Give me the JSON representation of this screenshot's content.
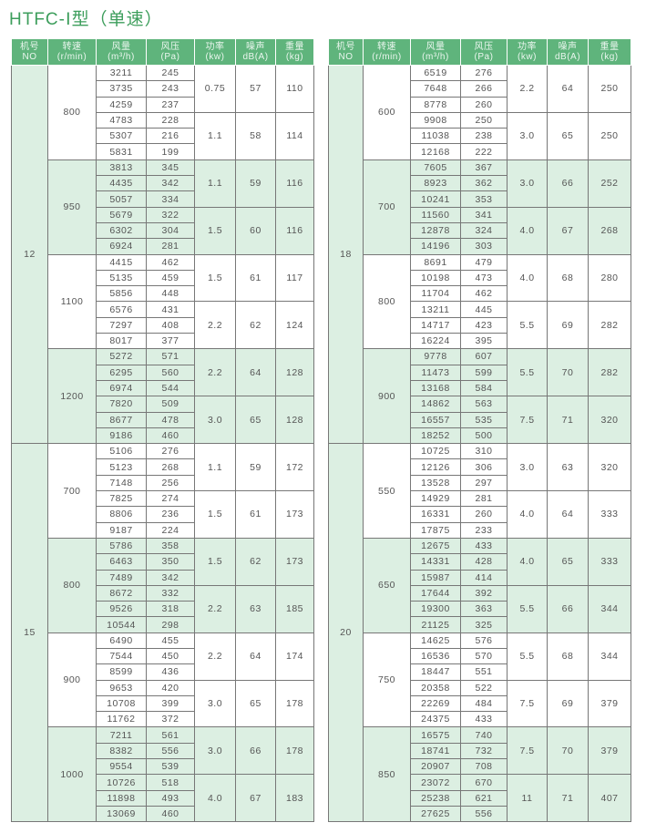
{
  "title": "HTFC-Ⅰ型（单速）",
  "colors": {
    "header": "#5fb47c",
    "shade": "#dcefe2",
    "title": "#3d9e5c"
  },
  "headers": [
    [
      "机号",
      "NO"
    ],
    [
      "转速",
      "(r/min)"
    ],
    [
      "风量",
      "(m³/h)"
    ],
    [
      "风压",
      "(Pa)"
    ],
    [
      "功率",
      "(kw)"
    ],
    [
      "噪声",
      "dB(A)"
    ],
    [
      "重量",
      "(kg)"
    ]
  ],
  "tables": [
    {
      "groups": [
        {
          "no": "12",
          "speeds": [
            {
              "speed": "800",
              "subs": [
                {
                  "power": "0.75",
                  "noise": "57",
                  "weight": "110",
                  "rows": [
                    [
                      "3211",
                      "245"
                    ],
                    [
                      "3735",
                      "243"
                    ],
                    [
                      "4259",
                      "237"
                    ]
                  ]
                },
                {
                  "power": "1.1",
                  "noise": "58",
                  "weight": "114",
                  "rows": [
                    [
                      "4783",
                      "228"
                    ],
                    [
                      "5307",
                      "216"
                    ],
                    [
                      "5831",
                      "199"
                    ]
                  ]
                }
              ]
            },
            {
              "speed": "950",
              "subs": [
                {
                  "power": "1.1",
                  "noise": "59",
                  "weight": "116",
                  "rows": [
                    [
                      "3813",
                      "345"
                    ],
                    [
                      "4435",
                      "342"
                    ],
                    [
                      "5057",
                      "334"
                    ]
                  ]
                },
                {
                  "power": "1.5",
                  "noise": "60",
                  "weight": "116",
                  "rows": [
                    [
                      "5679",
                      "322"
                    ],
                    [
                      "6302",
                      "304"
                    ],
                    [
                      "6924",
                      "281"
                    ]
                  ]
                }
              ]
            },
            {
              "speed": "1100",
              "subs": [
                {
                  "power": "1.5",
                  "noise": "61",
                  "weight": "117",
                  "rows": [
                    [
                      "4415",
                      "462"
                    ],
                    [
                      "5135",
                      "459"
                    ],
                    [
                      "5856",
                      "448"
                    ]
                  ]
                },
                {
                  "power": "2.2",
                  "noise": "62",
                  "weight": "124",
                  "rows": [
                    [
                      "6576",
                      "431"
                    ],
                    [
                      "7297",
                      "408"
                    ],
                    [
                      "8017",
                      "377"
                    ]
                  ]
                }
              ]
            },
            {
              "speed": "1200",
              "subs": [
                {
                  "power": "2.2",
                  "noise": "64",
                  "weight": "128",
                  "rows": [
                    [
                      "5272",
                      "571"
                    ],
                    [
                      "6295",
                      "560"
                    ],
                    [
                      "6974",
                      "544"
                    ]
                  ]
                },
                {
                  "power": "3.0",
                  "noise": "65",
                  "weight": "128",
                  "rows": [
                    [
                      "7820",
                      "509"
                    ],
                    [
                      "8677",
                      "478"
                    ],
                    [
                      "9186",
                      "460"
                    ]
                  ]
                }
              ]
            }
          ]
        },
        {
          "no": "15",
          "speeds": [
            {
              "speed": "700",
              "subs": [
                {
                  "power": "1.1",
                  "noise": "59",
                  "weight": "172",
                  "rows": [
                    [
                      "5106",
                      "276"
                    ],
                    [
                      "5123",
                      "268"
                    ],
                    [
                      "7148",
                      "256"
                    ]
                  ]
                },
                {
                  "power": "1.5",
                  "noise": "61",
                  "weight": "173",
                  "rows": [
                    [
                      "7825",
                      "274"
                    ],
                    [
                      "8806",
                      "236"
                    ],
                    [
                      "9187",
                      "224"
                    ]
                  ]
                }
              ]
            },
            {
              "speed": "800",
              "subs": [
                {
                  "power": "1.5",
                  "noise": "62",
                  "weight": "173",
                  "rows": [
                    [
                      "5786",
                      "358"
                    ],
                    [
                      "6463",
                      "350"
                    ],
                    [
                      "7489",
                      "342"
                    ]
                  ]
                },
                {
                  "power": "2.2",
                  "noise": "63",
                  "weight": "185",
                  "rows": [
                    [
                      "8672",
                      "332"
                    ],
                    [
                      "9526",
                      "318"
                    ],
                    [
                      "10544",
                      "298"
                    ]
                  ]
                }
              ]
            },
            {
              "speed": "900",
              "subs": [
                {
                  "power": "2.2",
                  "noise": "64",
                  "weight": "174",
                  "rows": [
                    [
                      "6490",
                      "455"
                    ],
                    [
                      "7544",
                      "450"
                    ],
                    [
                      "8599",
                      "436"
                    ]
                  ]
                },
                {
                  "power": "3.0",
                  "noise": "65",
                  "weight": "178",
                  "rows": [
                    [
                      "9653",
                      "420"
                    ],
                    [
                      "10708",
                      "399"
                    ],
                    [
                      "11762",
                      "372"
                    ]
                  ]
                }
              ]
            },
            {
              "speed": "1000",
              "subs": [
                {
                  "power": "3.0",
                  "noise": "66",
                  "weight": "178",
                  "rows": [
                    [
                      "7211",
                      "561"
                    ],
                    [
                      "8382",
                      "556"
                    ],
                    [
                      "9554",
                      "539"
                    ]
                  ]
                },
                {
                  "power": "4.0",
                  "noise": "67",
                  "weight": "183",
                  "rows": [
                    [
                      "10726",
                      "518"
                    ],
                    [
                      "11898",
                      "493"
                    ],
                    [
                      "13069",
                      "460"
                    ]
                  ]
                }
              ]
            }
          ]
        }
      ]
    },
    {
      "groups": [
        {
          "no": "18",
          "speeds": [
            {
              "speed": "600",
              "subs": [
                {
                  "power": "2.2",
                  "noise": "64",
                  "weight": "250",
                  "rows": [
                    [
                      "6519",
                      "276"
                    ],
                    [
                      "7648",
                      "266"
                    ],
                    [
                      "8778",
                      "260"
                    ]
                  ]
                },
                {
                  "power": "3.0",
                  "noise": "65",
                  "weight": "250",
                  "rows": [
                    [
                      "9908",
                      "250"
                    ],
                    [
                      "11038",
                      "238"
                    ],
                    [
                      "12168",
                      "222"
                    ]
                  ]
                }
              ]
            },
            {
              "speed": "700",
              "subs": [
                {
                  "power": "3.0",
                  "noise": "66",
                  "weight": "252",
                  "rows": [
                    [
                      "7605",
                      "367"
                    ],
                    [
                      "8923",
                      "362"
                    ],
                    [
                      "10241",
                      "353"
                    ]
                  ]
                },
                {
                  "power": "4.0",
                  "noise": "67",
                  "weight": "268",
                  "rows": [
                    [
                      "11560",
                      "341"
                    ],
                    [
                      "12878",
                      "324"
                    ],
                    [
                      "14196",
                      "303"
                    ]
                  ]
                }
              ]
            },
            {
              "speed": "800",
              "subs": [
                {
                  "power": "4.0",
                  "noise": "68",
                  "weight": "280",
                  "rows": [
                    [
                      "8691",
                      "479"
                    ],
                    [
                      "10198",
                      "473"
                    ],
                    [
                      "11704",
                      "462"
                    ]
                  ]
                },
                {
                  "power": "5.5",
                  "noise": "69",
                  "weight": "282",
                  "rows": [
                    [
                      "13211",
                      "445"
                    ],
                    [
                      "14717",
                      "423"
                    ],
                    [
                      "16224",
                      "395"
                    ]
                  ]
                }
              ]
            },
            {
              "speed": "900",
              "subs": [
                {
                  "power": "5.5",
                  "noise": "70",
                  "weight": "282",
                  "rows": [
                    [
                      "9778",
                      "607"
                    ],
                    [
                      "11473",
                      "599"
                    ],
                    [
                      "13168",
                      "584"
                    ]
                  ]
                },
                {
                  "power": "7.5",
                  "noise": "71",
                  "weight": "320",
                  "rows": [
                    [
                      "14862",
                      "563"
                    ],
                    [
                      "16557",
                      "535"
                    ],
                    [
                      "18252",
                      "500"
                    ]
                  ]
                }
              ]
            }
          ]
        },
        {
          "no": "20",
          "speeds": [
            {
              "speed": "550",
              "subs": [
                {
                  "power": "3.0",
                  "noise": "63",
                  "weight": "320",
                  "rows": [
                    [
                      "10725",
                      "310"
                    ],
                    [
                      "12126",
                      "306"
                    ],
                    [
                      "13528",
                      "297"
                    ]
                  ]
                },
                {
                  "power": "4.0",
                  "noise": "64",
                  "weight": "333",
                  "rows": [
                    [
                      "14929",
                      "281"
                    ],
                    [
                      "16331",
                      "260"
                    ],
                    [
                      "17875",
                      "233"
                    ]
                  ]
                }
              ]
            },
            {
              "speed": "650",
              "subs": [
                {
                  "power": "4.0",
                  "noise": "65",
                  "weight": "333",
                  "rows": [
                    [
                      "12675",
                      "433"
                    ],
                    [
                      "14331",
                      "428"
                    ],
                    [
                      "15987",
                      "414"
                    ]
                  ]
                },
                {
                  "power": "5.5",
                  "noise": "66",
                  "weight": "344",
                  "rows": [
                    [
                      "17644",
                      "392"
                    ],
                    [
                      "19300",
                      "363"
                    ],
                    [
                      "21125",
                      "325"
                    ]
                  ]
                }
              ]
            },
            {
              "speed": "750",
              "subs": [
                {
                  "power": "5.5",
                  "noise": "68",
                  "weight": "344",
                  "rows": [
                    [
                      "14625",
                      "576"
                    ],
                    [
                      "16536",
                      "570"
                    ],
                    [
                      "18447",
                      "551"
                    ]
                  ]
                },
                {
                  "power": "7.5",
                  "noise": "69",
                  "weight": "379",
                  "rows": [
                    [
                      "20358",
                      "522"
                    ],
                    [
                      "22269",
                      "484"
                    ],
                    [
                      "24375",
                      "433"
                    ]
                  ]
                }
              ]
            },
            {
              "speed": "850",
              "subs": [
                {
                  "power": "7.5",
                  "noise": "70",
                  "weight": "379",
                  "rows": [
                    [
                      "16575",
                      "740"
                    ],
                    [
                      "18741",
                      "732"
                    ],
                    [
                      "20907",
                      "708"
                    ]
                  ]
                },
                {
                  "power": "11",
                  "noise": "71",
                  "weight": "407",
                  "rows": [
                    [
                      "23072",
                      "670"
                    ],
                    [
                      "25238",
                      "621"
                    ],
                    [
                      "27625",
                      "556"
                    ]
                  ]
                }
              ]
            }
          ]
        }
      ]
    }
  ]
}
